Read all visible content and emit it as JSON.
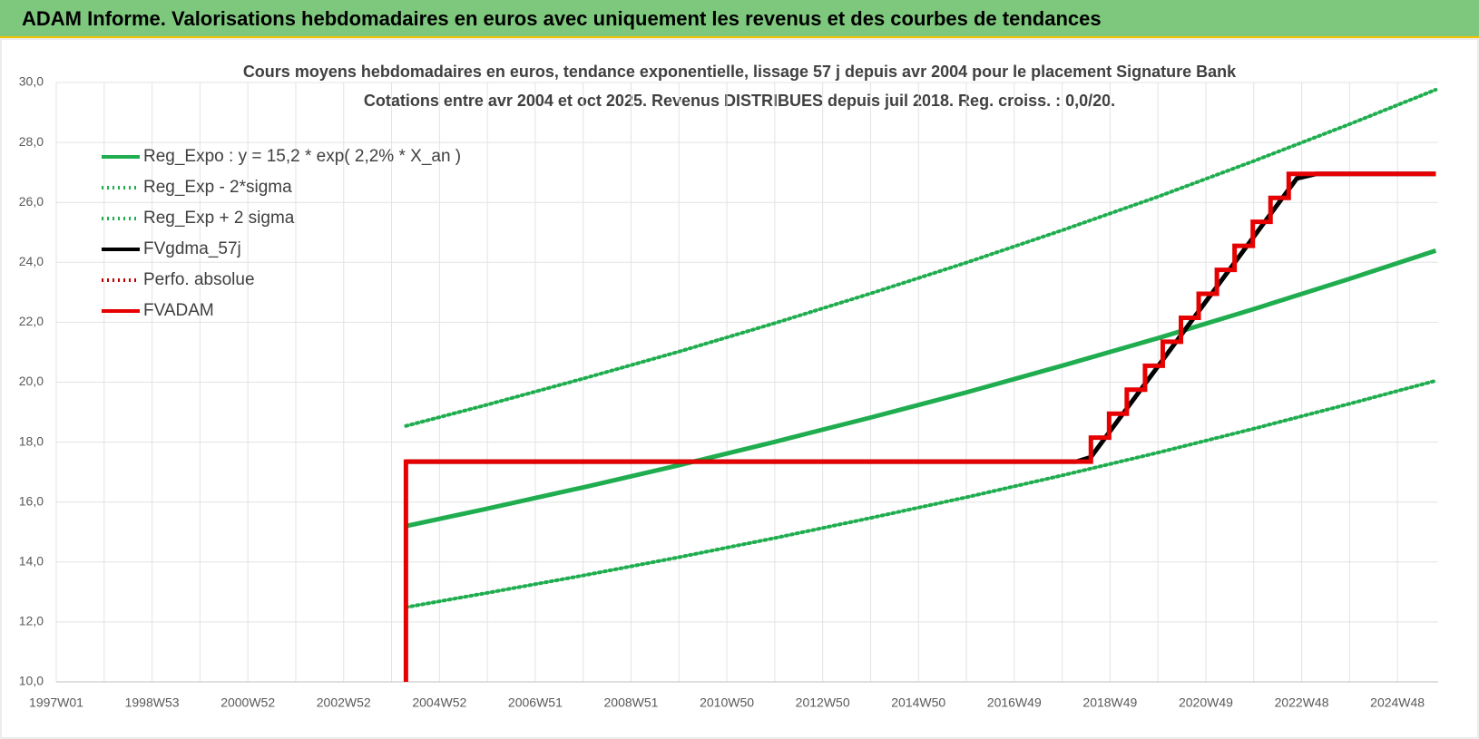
{
  "header": {
    "title": "ADAM Informe. Valorisations hebdomadaires en euros avec uniquement les revenus et des courbes de tendances"
  },
  "chart_data": {
    "type": "line",
    "title": "Cours moyens hebdomadaires en euros, tendance exponentielle, lissage 57 j depuis avr 2004 pour le placement Signature Bank",
    "subtitle": "Cotations entre avr 2004 et oct 2025.  Revenus DISTRIBUES depuis juil 2018. Reg. croiss. : 0,0/20.",
    "xlim": [
      1997,
      2025.85
    ],
    "xticks": [
      {
        "value": 1997,
        "label": "1997W01"
      },
      {
        "value": 1999,
        "label": "1998W53"
      },
      {
        "value": 2001,
        "label": "2000W52"
      },
      {
        "value": 2003,
        "label": "2002W52"
      },
      {
        "value": 2005,
        "label": "2004W52"
      },
      {
        "value": 2007,
        "label": "2006W51"
      },
      {
        "value": 2009,
        "label": "2008W51"
      },
      {
        "value": 2011,
        "label": "2010W50"
      },
      {
        "value": 2013,
        "label": "2012W50"
      },
      {
        "value": 2015,
        "label": "2014W50"
      },
      {
        "value": 2017,
        "label": "2016W49"
      },
      {
        "value": 2019,
        "label": "2018W49"
      },
      {
        "value": 2021,
        "label": "2020W49"
      },
      {
        "value": 2023,
        "label": "2022W48"
      },
      {
        "value": 2025,
        "label": "2024W48"
      }
    ],
    "xminor_ticks": [
      1998,
      2000,
      2002,
      2004,
      2006,
      2008,
      2010,
      2012,
      2014,
      2016,
      2018,
      2020,
      2022,
      2024
    ],
    "ylim": [
      10,
      30
    ],
    "yticks": [
      {
        "value": 10,
        "label": "10,0"
      },
      {
        "value": 12,
        "label": "12,0"
      },
      {
        "value": 14,
        "label": "14,0"
      },
      {
        "value": 16,
        "label": "16,0"
      },
      {
        "value": 18,
        "label": "18,0"
      },
      {
        "value": 20,
        "label": "20,0"
      },
      {
        "value": 22,
        "label": "22,0"
      },
      {
        "value": 24,
        "label": "24,0"
      },
      {
        "value": 26,
        "label": "26,0"
      },
      {
        "value": 28,
        "label": "28,0"
      },
      {
        "value": 30,
        "label": "30,0"
      }
    ],
    "grid": true,
    "legend": "top-left",
    "series": [
      {
        "name": "Reg_Expo : y = 15,2 * exp( 2,2% *  X_an )",
        "color": "#1fad4f",
        "style": "solid",
        "x": [
          2004.3,
          2006,
          2008,
          2010,
          2012,
          2014,
          2016,
          2018,
          2020,
          2022,
          2024,
          2025.8
        ],
        "values": [
          15.2,
          15.78,
          16.49,
          17.23,
          18.01,
          18.82,
          19.66,
          20.55,
          21.47,
          22.44,
          23.45,
          24.39
        ]
      },
      {
        "name": "Reg_Exp - 2*sigma",
        "color": "#1fad4f",
        "style": "dotted",
        "x": [
          2004.3,
          2006,
          2008,
          2010,
          2012,
          2014,
          2016,
          2018,
          2020,
          2022,
          2024,
          2025.8
        ],
        "values": [
          12.49,
          12.97,
          13.55,
          14.16,
          14.8,
          15.47,
          16.16,
          16.89,
          17.65,
          18.45,
          19.28,
          20.05
        ]
      },
      {
        "name": "Reg_Exp + 2 sigma",
        "color": "#1fad4f",
        "style": "dotted",
        "x": [
          2004.3,
          2006,
          2008,
          2010,
          2012,
          2014,
          2016,
          2018,
          2020,
          2022,
          2024,
          2025.8
        ],
        "values": [
          18.54,
          19.25,
          20.12,
          21.02,
          21.97,
          22.96,
          23.99,
          25.07,
          26.19,
          27.38,
          28.61,
          29.76
        ]
      },
      {
        "name": "FVgdma_57j",
        "color": "#000000",
        "style": "solid",
        "x": [
          2004.3,
          2018.3,
          2018.6,
          2022.9,
          2023.3,
          2025.8
        ],
        "values": [
          17.35,
          17.35,
          17.5,
          26.8,
          26.95,
          26.95
        ]
      },
      {
        "name": "Perfo. absolue",
        "color": "#c00000",
        "style": "dotted",
        "x": [
          2004.3,
          2018.6
        ],
        "values": [
          17.35,
          17.35
        ]
      },
      {
        "name": "FVADAM",
        "color": "#e60000",
        "style": "solid",
        "x": [
          2004.3,
          2004.3,
          2018.6,
          2018.6,
          2018.98,
          2018.98,
          2019.35,
          2019.35,
          2019.73,
          2019.73,
          2020.1,
          2020.1,
          2020.48,
          2020.48,
          2020.85,
          2020.85,
          2021.23,
          2021.23,
          2021.6,
          2021.6,
          2021.98,
          2021.98,
          2022.35,
          2022.35,
          2022.73,
          2022.73,
          2025.8
        ],
        "values": [
          10,
          17.35,
          17.35,
          18.15,
          18.15,
          18.95,
          18.95,
          19.75,
          19.75,
          20.55,
          20.55,
          21.35,
          21.35,
          22.15,
          22.15,
          22.95,
          22.95,
          23.75,
          23.75,
          24.55,
          24.55,
          25.35,
          25.35,
          26.15,
          26.15,
          26.95,
          26.95
        ]
      }
    ]
  }
}
